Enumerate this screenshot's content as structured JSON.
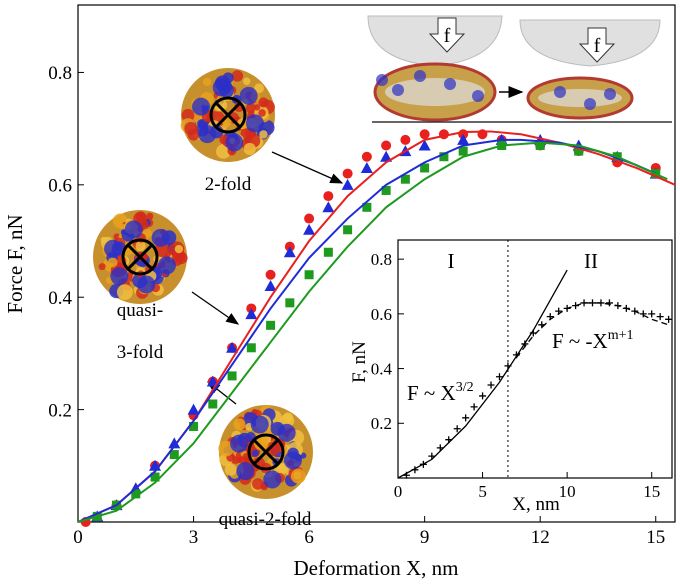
{
  "chart_data": [
    {
      "type": "scatter",
      "xlabel": "Deformation X, nm",
      "ylabel": "Force F, nN",
      "xlim": [
        0,
        15.5
      ],
      "ylim": [
        0,
        0.92
      ],
      "xticks": [
        0,
        3,
        6,
        9,
        12,
        15
      ],
      "yticks": [
        0.2,
        0.4,
        0.6,
        0.8
      ],
      "series": [
        {
          "color": "#e8201e",
          "marker": "circle",
          "x": [
            0.2,
            1,
            2,
            3,
            3.5,
            4,
            4.5,
            5,
            5.5,
            6,
            6.5,
            7,
            7.5,
            8,
            8.5,
            9,
            9.5,
            10,
            10.5,
            11,
            12,
            13,
            14,
            15
          ],
          "values": [
            0,
            0.03,
            0.1,
            0.19,
            0.25,
            0.31,
            0.38,
            0.44,
            0.49,
            0.54,
            0.58,
            0.62,
            0.65,
            0.67,
            0.68,
            0.69,
            0.69,
            0.69,
            0.69,
            0.68,
            0.67,
            0.66,
            0.64,
            0.63
          ]
        },
        {
          "color": "#1f2bd8",
          "marker": "triangle",
          "x": [
            0.5,
            1,
            1.5,
            2,
            2.5,
            3,
            3.5,
            4,
            4.5,
            5,
            5.5,
            6,
            6.5,
            7,
            7.5,
            8,
            8.5,
            9,
            10,
            11,
            12,
            13,
            14,
            15
          ],
          "values": [
            0.01,
            0.03,
            0.06,
            0.1,
            0.14,
            0.2,
            0.25,
            0.31,
            0.37,
            0.42,
            0.48,
            0.52,
            0.56,
            0.6,
            0.63,
            0.65,
            0.66,
            0.67,
            0.68,
            0.68,
            0.68,
            0.67,
            0.65,
            0.62
          ]
        },
        {
          "color": "#1e9a1e",
          "marker": "square",
          "x": [
            0.5,
            1,
            1.5,
            2,
            2.5,
            3,
            3.5,
            4,
            4.5,
            5,
            5.5,
            6,
            6.5,
            7,
            7.5,
            8,
            8.5,
            9,
            9.5,
            10,
            11,
            12,
            13,
            14,
            15
          ],
          "values": [
            0.01,
            0.03,
            0.05,
            0.08,
            0.12,
            0.17,
            0.21,
            0.26,
            0.31,
            0.35,
            0.39,
            0.44,
            0.48,
            0.52,
            0.56,
            0.59,
            0.61,
            0.63,
            0.65,
            0.66,
            0.67,
            0.67,
            0.66,
            0.65,
            0.62
          ]
        },
        {
          "color": "#e8201e",
          "marker": "line",
          "dash": "solid",
          "x": [
            0,
            1,
            2,
            3,
            4,
            5,
            6,
            7,
            8,
            9,
            10,
            10.7,
            11.5,
            12.5,
            13.5,
            14.5,
            15.5
          ],
          "values": [
            0,
            0.03,
            0.09,
            0.18,
            0.29,
            0.4,
            0.5,
            0.58,
            0.64,
            0.68,
            0.694,
            0.695,
            0.69,
            0.675,
            0.655,
            0.63,
            0.6
          ]
        },
        {
          "color": "#1f2bd8",
          "marker": "line",
          "dash": "solid",
          "x": [
            0,
            1,
            2,
            3,
            4,
            5,
            6,
            7,
            8,
            9,
            10,
            11,
            11.5,
            12.5,
            13.5,
            14.5,
            15
          ],
          "values": [
            0,
            0.03,
            0.09,
            0.18,
            0.28,
            0.38,
            0.47,
            0.54,
            0.6,
            0.64,
            0.67,
            0.68,
            0.68,
            0.675,
            0.66,
            0.635,
            0.62
          ]
        },
        {
          "color": "#1e9a1e",
          "marker": "line",
          "dash": "solid",
          "x": [
            0,
            1,
            2,
            3,
            4,
            5,
            6,
            7,
            8,
            9,
            10,
            11,
            12,
            13,
            14,
            15.3
          ],
          "values": [
            0,
            0.02,
            0.07,
            0.14,
            0.23,
            0.32,
            0.41,
            0.49,
            0.56,
            0.61,
            0.65,
            0.67,
            0.675,
            0.67,
            0.65,
            0.61
          ]
        }
      ],
      "annotations": [
        {
          "text": "2-fold"
        },
        {
          "text": "quasi-"
        },
        {
          "text": "3-fold"
        },
        {
          "text": "quasi-2-fold"
        },
        {
          "text": "f"
        },
        {
          "text": "f"
        }
      ]
    },
    {
      "type": "scatter",
      "xlabel": "X, nm",
      "ylabel": "F, nN",
      "xlim": [
        0,
        16.2
      ],
      "ylim": [
        0,
        0.87
      ],
      "xticks": [
        0,
        5,
        10,
        15
      ],
      "yticks": [
        0.2,
        0.4,
        0.6,
        0.8
      ],
      "vline": 6.5,
      "series": [
        {
          "color": "#000000",
          "marker": "plus",
          "x": [
            0.5,
            1,
            1.5,
            2,
            2.5,
            3,
            3.5,
            4,
            4.5,
            5,
            5.5,
            6,
            6.5,
            7,
            7.5,
            8,
            8.5,
            9,
            9.5,
            10,
            10.5,
            11,
            11.5,
            12,
            12.5,
            13,
            13.5,
            14,
            14.5,
            15,
            15.5,
            16
          ],
          "values": [
            0.01,
            0.03,
            0.05,
            0.08,
            0.11,
            0.14,
            0.18,
            0.22,
            0.26,
            0.3,
            0.34,
            0.37,
            0.41,
            0.45,
            0.49,
            0.53,
            0.56,
            0.59,
            0.61,
            0.62,
            0.63,
            0.64,
            0.64,
            0.64,
            0.64,
            0.63,
            0.62,
            0.61,
            0.6,
            0.6,
            0.59,
            0.58
          ]
        },
        {
          "color": "#000000",
          "marker": "line",
          "dash": "solid",
          "x": [
            0,
            2,
            4,
            6,
            8,
            10
          ],
          "values": [
            0,
            0.068,
            0.19,
            0.35,
            0.54,
            0.76
          ]
        },
        {
          "color": "#000000",
          "marker": "line",
          "dash": "dashed",
          "x": [
            7,
            8,
            9,
            10,
            11,
            12,
            13,
            14,
            15,
            16
          ],
          "values": [
            0.44,
            0.52,
            0.58,
            0.62,
            0.64,
            0.64,
            0.63,
            0.61,
            0.58,
            0.56
          ]
        }
      ],
      "annotations": [
        {
          "text": "I"
        },
        {
          "text": "II"
        },
        {
          "text": "F ~ X",
          "sup": "3/2"
        },
        {
          "text": "F ~ -X",
          "sup": "m+1"
        }
      ]
    }
  ]
}
